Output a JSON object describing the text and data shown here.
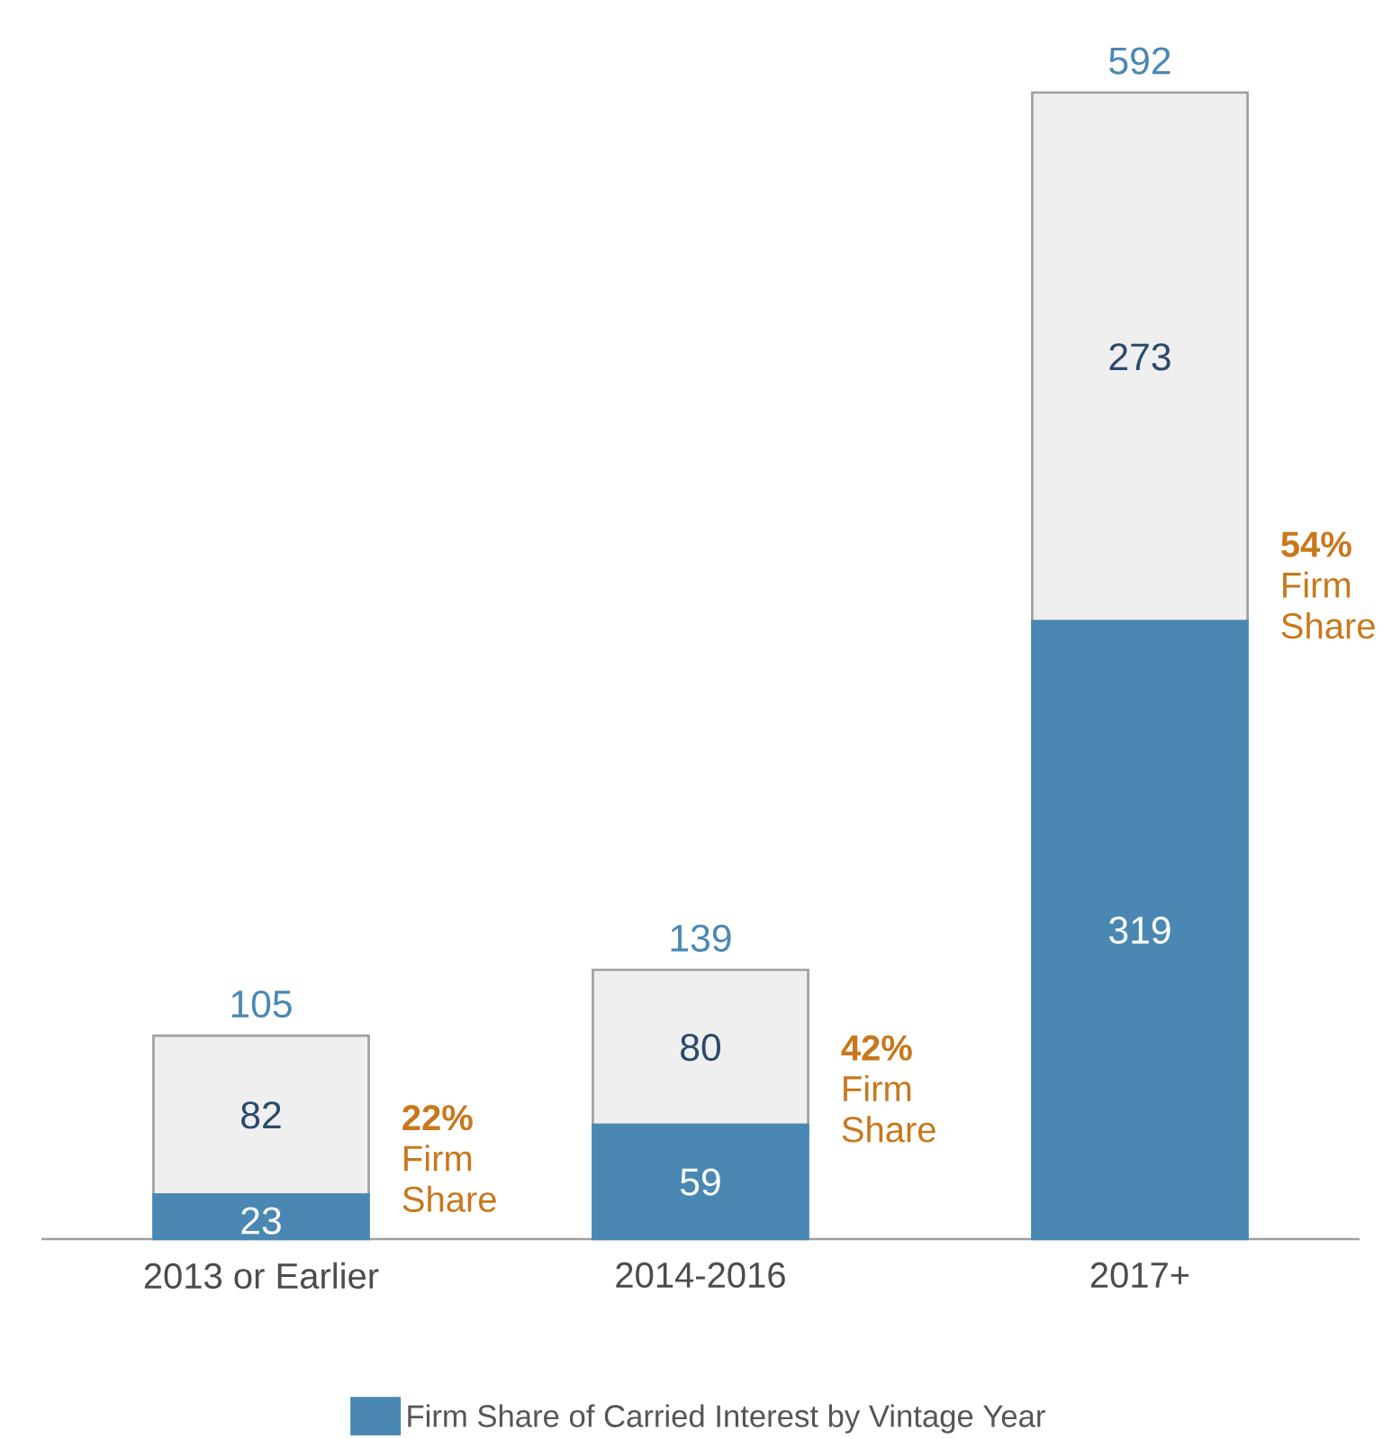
{
  "chart_data": {
    "type": "bar",
    "stacked": true,
    "data_labels": true,
    "legend": "bottom",
    "categories": [
      "2013 or Earlier",
      "2014-2016",
      "2017+"
    ],
    "series": [
      {
        "name": "Firm Share of Carried Interest by Vintage Year",
        "color": "#4a88b3",
        "values": [
          23,
          59,
          319
        ]
      },
      {
        "color": "#efefef",
        "values": [
          82,
          80,
          273
        ]
      }
    ],
    "totals": [
      "105",
      "139",
      "592"
    ],
    "annotations": [
      "**22%** Firm Share",
      "**42%** Firm Share",
      "**54%** Firm Share"
    ]
  }
}
